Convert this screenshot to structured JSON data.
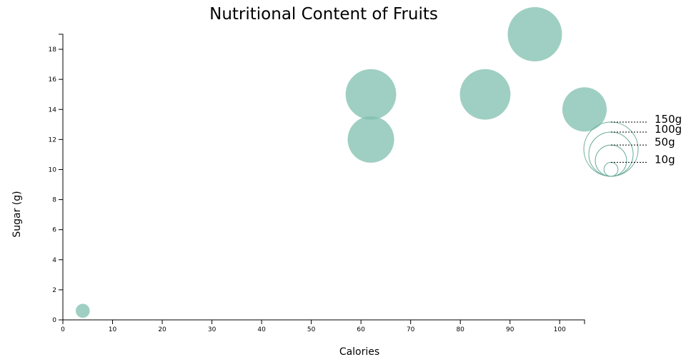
{
  "chart_data": {
    "type": "scatter",
    "title": "Nutritional Content of Fruits",
    "xlabel": "Calories",
    "ylabel": "Sugar (g)",
    "xlim": [
      0,
      105
    ],
    "ylim": [
      0,
      19
    ],
    "xticks": [
      0,
      10,
      20,
      30,
      40,
      50,
      60,
      70,
      80,
      90,
      100
    ],
    "yticks": [
      0,
      2,
      4,
      6,
      8,
      10,
      12,
      14,
      16,
      18
    ],
    "grid": false,
    "bubble_color": "#7fbfad",
    "points": [
      {
        "x": 4,
        "y": 0.6,
        "size": 10
      },
      {
        "x": 62,
        "y": 15,
        "size": 130
      },
      {
        "x": 62,
        "y": 12,
        "size": 110
      },
      {
        "x": 85,
        "y": 15,
        "size": 130
      },
      {
        "x": 95,
        "y": 19,
        "size": 150
      },
      {
        "x": 105,
        "y": 14,
        "size": 100
      }
    ],
    "size_legend": {
      "placement": "right",
      "color": "#6aab9a",
      "entries": [
        {
          "value": 150,
          "label": "150g"
        },
        {
          "value": 100,
          "label": "100g"
        },
        {
          "value": 50,
          "label": "50g"
        },
        {
          "value": 10,
          "label": "10g"
        }
      ]
    }
  }
}
